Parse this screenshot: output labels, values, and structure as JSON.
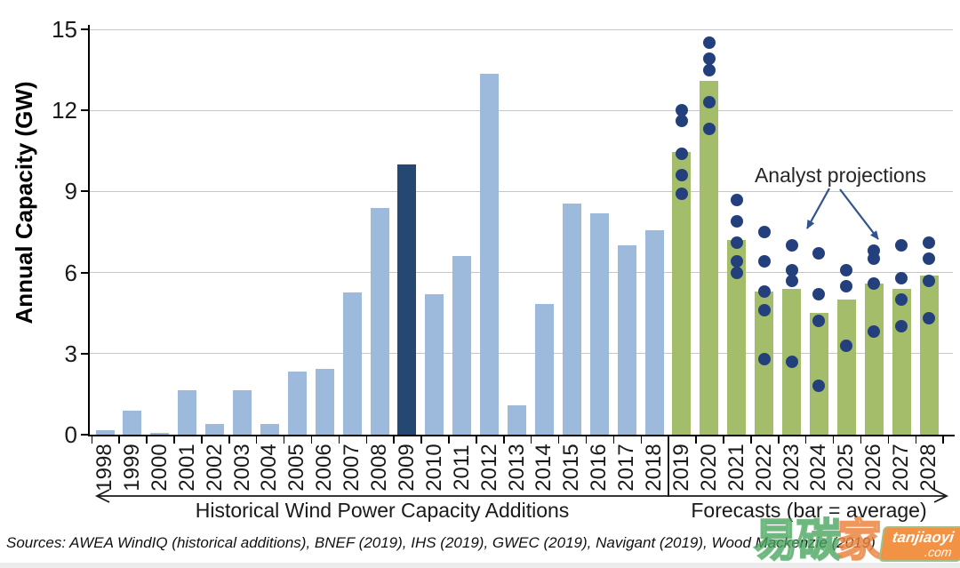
{
  "colors": {
    "historical": "#9DB9DB",
    "highlight": "#254872",
    "forecast": "#A3BD6B",
    "dot": "#24407C",
    "arrow": "#31538F",
    "grid": "#C6C6C6",
    "watermark_green": "#48A65E",
    "watermark_orange": "#F08C3A"
  },
  "chart_data": {
    "type": "bar",
    "title": "",
    "ylabel": "Annual Capacity (GW)",
    "xlabel": "",
    "ylim": [
      0,
      15
    ],
    "yticks": [
      0,
      3,
      6,
      9,
      12,
      15
    ],
    "grid": "horizontal",
    "legend_position": "none",
    "categories": [
      "1998",
      "1999",
      "2000",
      "2001",
      "2002",
      "2003",
      "2004",
      "2005",
      "2006",
      "2007",
      "2008",
      "2009",
      "2010",
      "2011",
      "2012",
      "2013",
      "2014",
      "2015",
      "2016",
      "2017",
      "2018",
      "2019",
      "2020",
      "2021",
      "2022",
      "2023",
      "2024",
      "2025",
      "2026",
      "2027",
      "2028"
    ],
    "bars": [
      {
        "year": "1998",
        "value": 0.15,
        "kind": "historical"
      },
      {
        "year": "1999",
        "value": 0.9,
        "kind": "historical"
      },
      {
        "year": "2000",
        "value": 0.07,
        "kind": "historical"
      },
      {
        "year": "2001",
        "value": 1.65,
        "kind": "historical"
      },
      {
        "year": "2002",
        "value": 0.4,
        "kind": "historical"
      },
      {
        "year": "2003",
        "value": 1.65,
        "kind": "historical"
      },
      {
        "year": "2004",
        "value": 0.4,
        "kind": "historical"
      },
      {
        "year": "2005",
        "value": 2.35,
        "kind": "historical"
      },
      {
        "year": "2006",
        "value": 2.45,
        "kind": "historical"
      },
      {
        "year": "2007",
        "value": 5.25,
        "kind": "historical"
      },
      {
        "year": "2008",
        "value": 8.4,
        "kind": "historical"
      },
      {
        "year": "2009",
        "value": 10.0,
        "kind": "highlight"
      },
      {
        "year": "2010",
        "value": 5.2,
        "kind": "historical"
      },
      {
        "year": "2011",
        "value": 6.6,
        "kind": "historical"
      },
      {
        "year": "2012",
        "value": 13.35,
        "kind": "historical"
      },
      {
        "year": "2013",
        "value": 1.1,
        "kind": "historical"
      },
      {
        "year": "2014",
        "value": 4.85,
        "kind": "historical"
      },
      {
        "year": "2015",
        "value": 8.55,
        "kind": "historical"
      },
      {
        "year": "2016",
        "value": 8.2,
        "kind": "historical"
      },
      {
        "year": "2017",
        "value": 7.0,
        "kind": "historical"
      },
      {
        "year": "2018",
        "value": 7.55,
        "kind": "historical"
      },
      {
        "year": "2019",
        "value": 10.45,
        "kind": "forecast"
      },
      {
        "year": "2020",
        "value": 13.1,
        "kind": "forecast"
      },
      {
        "year": "2021",
        "value": 7.2,
        "kind": "forecast"
      },
      {
        "year": "2022",
        "value": 5.3,
        "kind": "forecast"
      },
      {
        "year": "2023",
        "value": 5.4,
        "kind": "forecast"
      },
      {
        "year": "2024",
        "value": 4.5,
        "kind": "forecast"
      },
      {
        "year": "2025",
        "value": 5.0,
        "kind": "forecast"
      },
      {
        "year": "2026",
        "value": 5.6,
        "kind": "forecast"
      },
      {
        "year": "2027",
        "value": 5.4,
        "kind": "forecast"
      },
      {
        "year": "2028",
        "value": 5.9,
        "kind": "forecast"
      }
    ],
    "projections": {
      "2019": [
        12.0,
        11.6,
        10.4,
        9.6,
        8.9
      ],
      "2020": [
        14.5,
        13.9,
        13.5,
        12.3,
        11.3
      ],
      "2021": [
        8.7,
        7.9,
        7.1,
        6.4,
        6.0
      ],
      "2022": [
        7.5,
        6.4,
        5.3,
        4.6,
        2.8
      ],
      "2023": [
        7.0,
        6.1,
        5.7,
        2.7
      ],
      "2024": [
        6.7,
        5.2,
        4.2,
        1.8
      ],
      "2025": [
        6.1,
        5.5,
        3.3
      ],
      "2026": [
        6.8,
        6.5,
        5.6,
        3.8
      ],
      "2027": [
        7.0,
        5.8,
        5.0,
        4.0
      ],
      "2028": [
        7.1,
        6.5,
        5.7,
        4.3
      ]
    },
    "annotation": "Analyst projections",
    "x_group_left": "Historical Wind Power Capacity Additions",
    "x_group_right": "Forecasts (bar = average)"
  },
  "source": {
    "text": "Sources: AWEA WindIQ (historical additions), BNEF (2019), IHS (2019), GWEC (2019), Navigant (2019), Wood Mackenzie (2019)"
  },
  "watermark": {
    "char_1": "易",
    "char_2": "碳",
    "char_3": "家",
    "brand": "tanjiaoyi",
    "brand_suffix": ".com"
  }
}
